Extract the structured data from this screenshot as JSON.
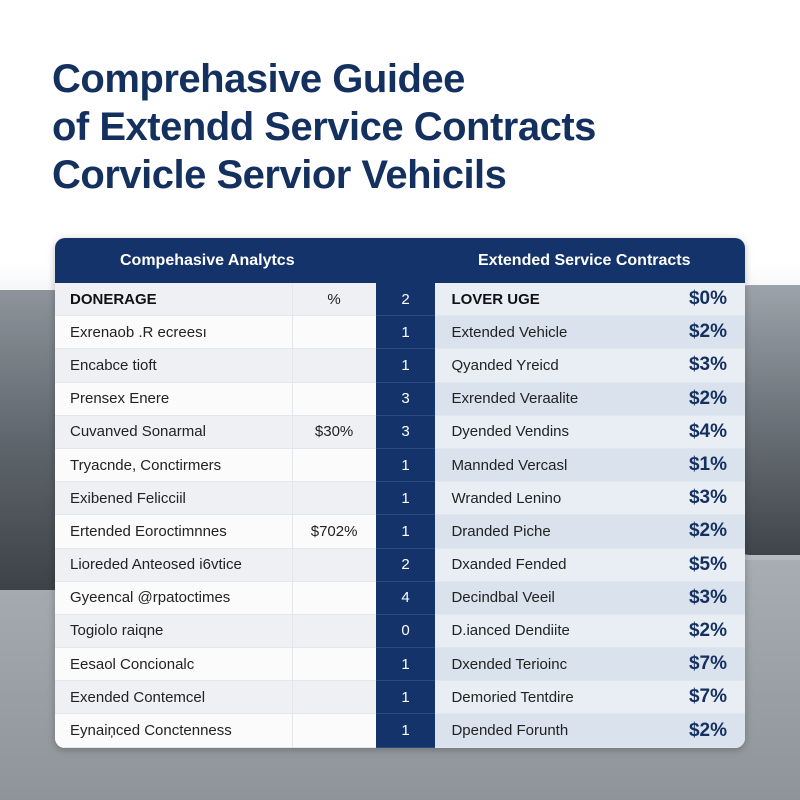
{
  "title_lines": [
    "Comprehasive Guidee",
    "of Extendd Service Contracts",
    "Corvicle Servior Vehicils"
  ],
  "table": {
    "left_header": "Compehasive Analytcs",
    "right_header": "Extended Service Contracts",
    "rows": [
      {
        "label": "DONERAGE",
        "pct": "%",
        "num": "2",
        "right_label": "LOVER UGE",
        "price": "$0%"
      },
      {
        "label": "Exrenaob .R ecreesı",
        "pct": "",
        "num": "1",
        "right_label": "Extended Vehicle",
        "price": "$2%"
      },
      {
        "label": "Encabce tioft",
        "pct": "",
        "num": "1",
        "right_label": "Qyanded Yreicd",
        "price": "$3%"
      },
      {
        "label": "Prensex Enere",
        "pct": "",
        "num": "3",
        "right_label": "Exrended Veraalite",
        "price": "$2%"
      },
      {
        "label": "Cuvanved Sonarmal",
        "pct": "$30%",
        "num": "3",
        "right_label": "Dyended Vendins",
        "price": "$4%"
      },
      {
        "label": "Tryacnde, Conctirmers",
        "pct": "",
        "num": "1",
        "right_label": "Mannded Vercasl",
        "price": "$1%"
      },
      {
        "label": "Exibened Felicciil",
        "pct": "",
        "num": "1",
        "right_label": "Wranded Lenino",
        "price": "$3%"
      },
      {
        "label": "Ertended Eoroctimnnes",
        "pct": "$702%",
        "num": "1",
        "right_label": "Dranded Piche",
        "price": "$2%"
      },
      {
        "label": "Lioreded Anteosed i6vtice",
        "pct": "",
        "num": "2",
        "right_label": "Dxanded Fended",
        "price": "$5%"
      },
      {
        "label": "Gyeencal @rpatoctimes",
        "pct": "",
        "num": "4",
        "right_label": "Decindbal Veeil",
        "price": "$3%"
      },
      {
        "label": "Togiolo raiqne",
        "pct": "",
        "num": "0",
        "right_label": "D.ianced Dendiite",
        "price": "$2%"
      },
      {
        "label": "Eesaol Concionalc",
        "pct": "",
        "num": "1",
        "right_label": "Dxended Terioinc",
        "price": "$7%"
      },
      {
        "label": "Exended Contemcel",
        "pct": "",
        "num": "1",
        "right_label": "Demoried Tentdire",
        "price": "$7%"
      },
      {
        "label": "Eynaiņced Conctenness",
        "pct": "",
        "num": "1",
        "right_label": "Dpended Forunth",
        "price": "$2%"
      }
    ]
  },
  "colors": {
    "navy": "#14336a",
    "title": "#14305f"
  }
}
